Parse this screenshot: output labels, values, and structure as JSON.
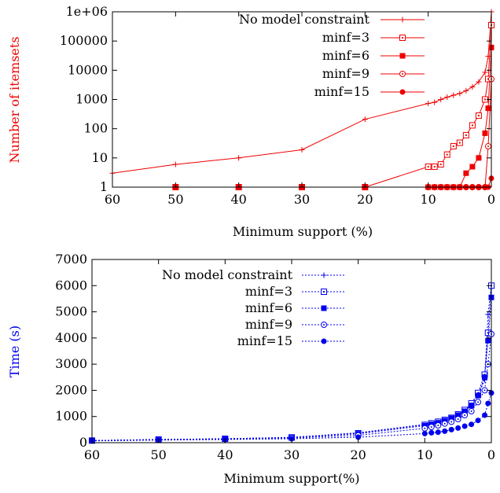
{
  "chart_data": [
    {
      "type": "line",
      "title": "",
      "xlabel": "Minimum support (%)",
      "ylabel": "Number of itemsets",
      "ylabel_color": "#ee0000",
      "line_color": "#ee0000",
      "x_reversed": true,
      "xlim": [
        60,
        0
      ],
      "xticks": [
        60,
        50,
        40,
        30,
        20,
        10,
        0
      ],
      "yscale": "log",
      "ylim": [
        1,
        1000000
      ],
      "yticks": [
        1,
        10,
        100,
        1000,
        10000,
        100000,
        1000000
      ],
      "ytick_labels": [
        "1",
        "10",
        "100",
        "1000",
        "10000",
        "100000",
        "1e+06"
      ],
      "legend_position": "top-right",
      "grid": false,
      "series": [
        {
          "name": "No model constraint",
          "marker": "plus",
          "x": [
            60,
            50,
            40,
            30,
            20,
            10,
            9,
            8,
            7,
            6,
            5,
            4,
            3,
            2,
            1,
            0.5,
            0
          ],
          "y": [
            3,
            6,
            10,
            19,
            210,
            730,
            800,
            1000,
            1200,
            1400,
            1600,
            2000,
            2700,
            4000,
            8500,
            30000,
            1000000
          ]
        },
        {
          "name": "minf=3",
          "marker": "square-open",
          "x": [
            50,
            40,
            30,
            20,
            10,
            9,
            8,
            7,
            6,
            5,
            4,
            3,
            2,
            1,
            0.5,
            0
          ],
          "y": [
            1,
            1,
            1,
            1,
            5,
            5,
            6,
            13,
            25,
            33,
            60,
            130,
            280,
            1000,
            5000,
            350000
          ]
        },
        {
          "name": "minf=6",
          "marker": "square-filled",
          "x": [
            50,
            40,
            30,
            20,
            10,
            9,
            8,
            7,
            6,
            5,
            4,
            3,
            2,
            1,
            0.5,
            0
          ],
          "y": [
            1,
            1,
            1,
            1,
            1,
            1,
            1,
            1,
            1,
            1,
            3,
            5,
            10,
            70,
            500,
            60000
          ]
        },
        {
          "name": "minf=9",
          "marker": "circle-open",
          "x": [
            50,
            40,
            30,
            20,
            10,
            9,
            8,
            7,
            6,
            5,
            4,
            3,
            2,
            1,
            0.5,
            0
          ],
          "y": [
            1,
            1,
            1,
            1,
            1,
            1,
            1,
            1,
            1,
            1,
            1,
            1,
            1,
            1,
            25,
            5000
          ]
        },
        {
          "name": "minf=15",
          "marker": "circle-filled",
          "x": [
            50,
            40,
            30,
            20,
            10,
            9,
            8,
            7,
            6,
            5,
            4,
            3,
            2,
            1,
            0.5,
            0
          ],
          "y": [
            1,
            1,
            1,
            1,
            1,
            1,
            1,
            1,
            1,
            1,
            1,
            1,
            1,
            1,
            1,
            2
          ]
        }
      ]
    },
    {
      "type": "line",
      "title": "",
      "xlabel": "Minimum support(%)",
      "ylabel": "Time (s)",
      "ylabel_color": "#0000ee",
      "line_color": "#0000ee",
      "x_reversed": true,
      "xlim": [
        60,
        0
      ],
      "xticks": [
        60,
        50,
        40,
        30,
        20,
        10,
        0
      ],
      "yscale": "linear",
      "ylim": [
        0,
        7000
      ],
      "yticks": [
        0,
        1000,
        2000,
        3000,
        4000,
        5000,
        6000,
        7000
      ],
      "ytick_labels": [
        "0",
        "1000",
        "2000",
        "3000",
        "4000",
        "5000",
        "6000",
        "7000"
      ],
      "legend_position": "top-center",
      "grid": false,
      "series": [
        {
          "name": "No model constraint",
          "marker": "plus",
          "x": [
            60,
            50,
            40,
            30,
            20,
            10,
            9,
            8,
            7,
            6,
            5,
            4,
            3,
            2,
            1,
            0.5,
            0
          ],
          "y": [
            80,
            120,
            150,
            200,
            380,
            700,
            760,
            820,
            880,
            950,
            1050,
            1200,
            1450,
            1800,
            2400,
            4900,
            6050
          ]
        },
        {
          "name": "minf=3",
          "marker": "square-open",
          "x": [
            60,
            50,
            40,
            30,
            20,
            10,
            9,
            8,
            7,
            6,
            5,
            4,
            3,
            2,
            1,
            0.5,
            0
          ],
          "y": [
            80,
            120,
            150,
            200,
            360,
            680,
            740,
            800,
            870,
            950,
            1080,
            1250,
            1500,
            1900,
            2600,
            4200,
            6000
          ]
        },
        {
          "name": "minf=6",
          "marker": "square-filled",
          "x": [
            60,
            50,
            40,
            30,
            20,
            10,
            9,
            8,
            7,
            6,
            5,
            4,
            3,
            2,
            1,
            0.5,
            0
          ],
          "y": [
            80,
            120,
            150,
            200,
            340,
            650,
            700,
            760,
            840,
            930,
            1050,
            1200,
            1420,
            1800,
            2500,
            3900,
            5550
          ]
        },
        {
          "name": "minf=9",
          "marker": "circle-open",
          "x": [
            60,
            50,
            40,
            30,
            20,
            10,
            9,
            8,
            7,
            6,
            5,
            4,
            3,
            2,
            1,
            0.5,
            0
          ],
          "y": [
            80,
            120,
            140,
            180,
            280,
            550,
            600,
            660,
            730,
            800,
            900,
            1050,
            1200,
            1550,
            2000,
            3000,
            4150
          ]
        },
        {
          "name": "minf=15",
          "marker": "circle-filled",
          "x": [
            60,
            50,
            40,
            30,
            20,
            10,
            9,
            8,
            7,
            6,
            5,
            4,
            3,
            2,
            1,
            0.5,
            0
          ],
          "y": [
            70,
            100,
            120,
            150,
            210,
            350,
            380,
            400,
            440,
            500,
            560,
            630,
            700,
            850,
            1050,
            1500,
            1900
          ]
        }
      ]
    }
  ]
}
